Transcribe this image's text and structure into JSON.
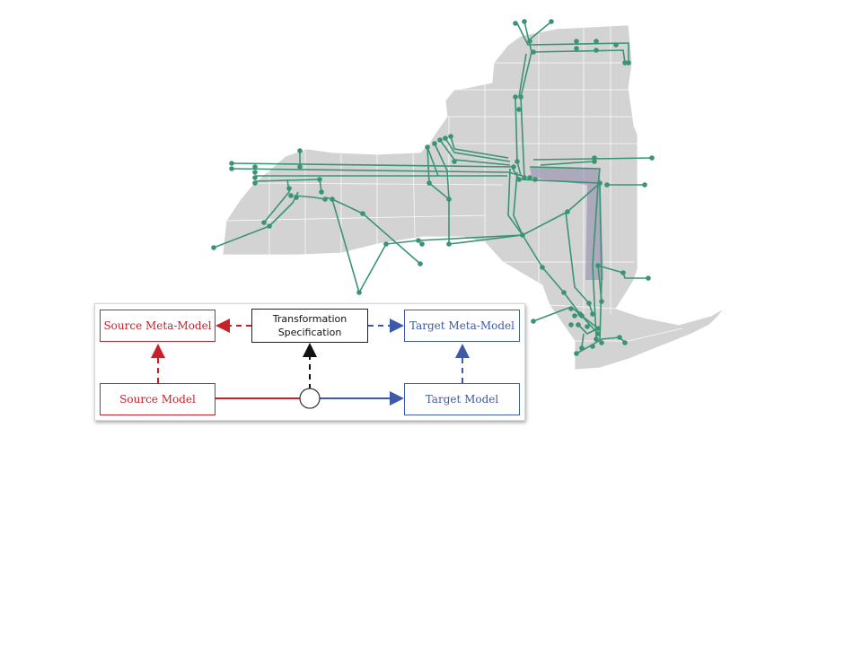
{
  "diagram": {
    "source_meta_model": "Source Meta-Model",
    "transformation_specification_line1": "Transformation",
    "transformation_specification_line2": "Specification",
    "target_meta_model": "Target Meta-Model",
    "source_model": "Source Model",
    "target_model": "Target Model"
  },
  "colors": {
    "map_fill": "#d3d3d3",
    "county_border": "#ffffff",
    "network": "#3a9473",
    "highlight": "#8b86a8",
    "source": "#c8202a",
    "target": "#3d5aa8"
  }
}
